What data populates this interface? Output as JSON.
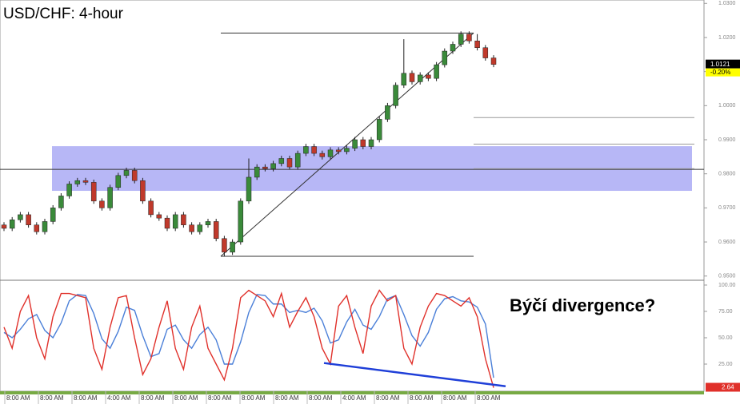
{
  "chart_data": {
    "type": "candlestick",
    "title": "USD/CHF: 4-hour",
    "annotation": "Býčí divergence?",
    "open": [
      0.965,
      0.964,
      0.9665,
      0.968,
      0.965,
      0.963,
      0.966,
      0.97,
      0.9735,
      0.977,
      0.978,
      0.9775,
      0.972,
      0.97,
      0.976,
      0.9795,
      0.981,
      0.978,
      0.972,
      0.968,
      0.967,
      0.964,
      0.968,
      0.965,
      0.963,
      0.965,
      0.966,
      0.961,
      0.957,
      0.96,
      0.972,
      0.979,
      0.982,
      0.9815,
      0.983,
      0.9845,
      0.982,
      0.986,
      0.988,
      0.986,
      0.985,
      0.987,
      0.9865,
      0.9875,
      0.99,
      0.988,
      0.99,
      0.996,
      1.0,
      1.006,
      1.0095,
      1.007,
      1.009,
      1.008,
      1.012,
      1.016,
      1.018,
      1.021,
      1.019,
      1.017,
      1.014
    ],
    "high": [
      0.9658,
      0.9673,
      0.9688,
      0.9688,
      0.9658,
      0.9668,
      0.9708,
      0.9743,
      0.9778,
      0.9788,
      0.9788,
      0.9783,
      0.9728,
      0.9768,
      0.9803,
      0.9818,
      0.9818,
      0.9788,
      0.9728,
      0.9688,
      0.9678,
      0.9688,
      0.9688,
      0.9658,
      0.9658,
      0.9668,
      0.9668,
      0.9618,
      0.9608,
      0.9728,
      0.9845,
      0.9828,
      0.9828,
      0.9838,
      0.9853,
      0.9853,
      0.9868,
      0.9888,
      0.9888,
      0.9868,
      0.9878,
      0.9878,
      0.9883,
      0.9908,
      0.9908,
      0.9908,
      0.9968,
      1.0008,
      1.0068,
      1.0195,
      1.0103,
      1.0098,
      1.0098,
      1.0128,
      1.0168,
      1.0188,
      1.0218,
      1.0218,
      1.021,
      1.0178,
      1.0148
    ],
    "low": [
      0.9632,
      0.9632,
      0.9657,
      0.9642,
      0.9622,
      0.9622,
      0.9652,
      0.9692,
      0.9727,
      0.9762,
      0.9767,
      0.9712,
      0.9692,
      0.9692,
      0.9752,
      0.9787,
      0.9772,
      0.9712,
      0.9672,
      0.9662,
      0.9632,
      0.9632,
      0.9642,
      0.9622,
      0.9622,
      0.9642,
      0.9602,
      0.9558,
      0.9562,
      0.9592,
      0.9712,
      0.9782,
      0.9807,
      0.9807,
      0.9822,
      0.9812,
      0.9812,
      0.9852,
      0.9852,
      0.9842,
      0.9842,
      0.9857,
      0.9857,
      0.9867,
      0.9872,
      0.9872,
      0.9892,
      0.9952,
      0.9992,
      1.0052,
      1.0062,
      1.0062,
      1.0072,
      1.0072,
      1.0112,
      1.0152,
      1.0172,
      1.0182,
      1.0162,
      1.0132,
      1.0113
    ],
    "close": [
      0.964,
      0.9665,
      0.968,
      0.965,
      0.963,
      0.966,
      0.97,
      0.9735,
      0.977,
      0.978,
      0.9775,
      0.972,
      0.97,
      0.976,
      0.9795,
      0.981,
      0.978,
      0.972,
      0.968,
      0.967,
      0.964,
      0.968,
      0.965,
      0.963,
      0.965,
      0.966,
      0.961,
      0.957,
      0.96,
      0.972,
      0.979,
      0.982,
      0.9815,
      0.983,
      0.9845,
      0.982,
      0.986,
      0.988,
      0.986,
      0.985,
      0.987,
      0.9865,
      0.9875,
      0.99,
      0.988,
      0.99,
      0.996,
      1.0,
      1.006,
      1.0095,
      1.007,
      1.009,
      1.008,
      1.012,
      1.016,
      1.018,
      1.021,
      1.019,
      1.017,
      1.014,
      1.0121
    ],
    "up_color": "#3a8a3a",
    "down_color": "#c0392b",
    "ylim": [
      0.949,
      1.031
    ],
    "yticks": [
      {
        "value": 1.03,
        "label": "1.0300"
      },
      {
        "value": 1.02,
        "label": "1.0200"
      },
      {
        "value": 1.01,
        "label": "1.0100"
      },
      {
        "value": 1.0,
        "label": "1.0000"
      },
      {
        "value": 0.99,
        "label": "0.9900"
      },
      {
        "value": 0.98,
        "label": "0.9800"
      },
      {
        "value": 0.97,
        "label": "0.9700"
      },
      {
        "value": 0.96,
        "label": "0.9600"
      },
      {
        "value": 0.95,
        "label": "0.9500"
      }
    ],
    "last_price": {
      "value": 1.0121,
      "label": "1.0121"
    },
    "change_label": "-0.20%",
    "zone": [
      0.975,
      0.9881
    ],
    "zone_color": "#aaaaf5",
    "level_line": 0.9813,
    "fib_lines": [
      0.9965,
      0.9887,
      0.9815
    ],
    "trend_high": 1.0213,
    "trend_low": 0.9558,
    "oscillator": {
      "ylim": [
        0,
        100
      ],
      "yticks": [
        {
          "value": 100,
          "label": "100.00"
        },
        {
          "value": 75,
          "label": "75.00"
        },
        {
          "value": 50,
          "label": "50.00"
        },
        {
          "value": 25,
          "label": "25.00"
        }
      ],
      "series": [
        {
          "name": "%K",
          "color": "#e0302a",
          "values": [
            60,
            40,
            75,
            90,
            50,
            30,
            70,
            92,
            92,
            90,
            88,
            40,
            20,
            60,
            88,
            90,
            50,
            15,
            30,
            60,
            85,
            40,
            20,
            60,
            80,
            40,
            25,
            10,
            40,
            88,
            95,
            90,
            85,
            70,
            92,
            60,
            75,
            88,
            70,
            40,
            25,
            80,
            90,
            60,
            35,
            80,
            95,
            85,
            90,
            40,
            25,
            60,
            80,
            92,
            90,
            85,
            80,
            88,
            70,
            30,
            2.64
          ]
        },
        {
          "name": "%D",
          "color": "#4a7fd8",
          "values": [
            55,
            50,
            58,
            68,
            72,
            57,
            50,
            64,
            85,
            91,
            90,
            73,
            49,
            40,
            56,
            79,
            76,
            52,
            32,
            35,
            58,
            62,
            48,
            40,
            53,
            60,
            48,
            25,
            25,
            46,
            74,
            91,
            90,
            82,
            82,
            74,
            76,
            74,
            78,
            66,
            45,
            48,
            65,
            77,
            62,
            58,
            70,
            87,
            90,
            72,
            52,
            42,
            55,
            77,
            87,
            89,
            85,
            84,
            79,
            63,
            12
          ]
        }
      ],
      "last_value": {
        "value": 2.64,
        "label": "2.64"
      },
      "divergence": [
        26,
        4
      ],
      "divergence_color": "#1f3fd8"
    },
    "x_labels": [
      "8:00 AM",
      "8:00 AM",
      "8:00 AM",
      "4:00 AM",
      "8:00 AM",
      "8:00 AM",
      "8:00 AM",
      "8:00 AM",
      "8:00 AM",
      "8:00 AM",
      "4:00 AM",
      "8:00 AM",
      "8:00 AM",
      "8:00 AM",
      "8:00 AM"
    ]
  }
}
